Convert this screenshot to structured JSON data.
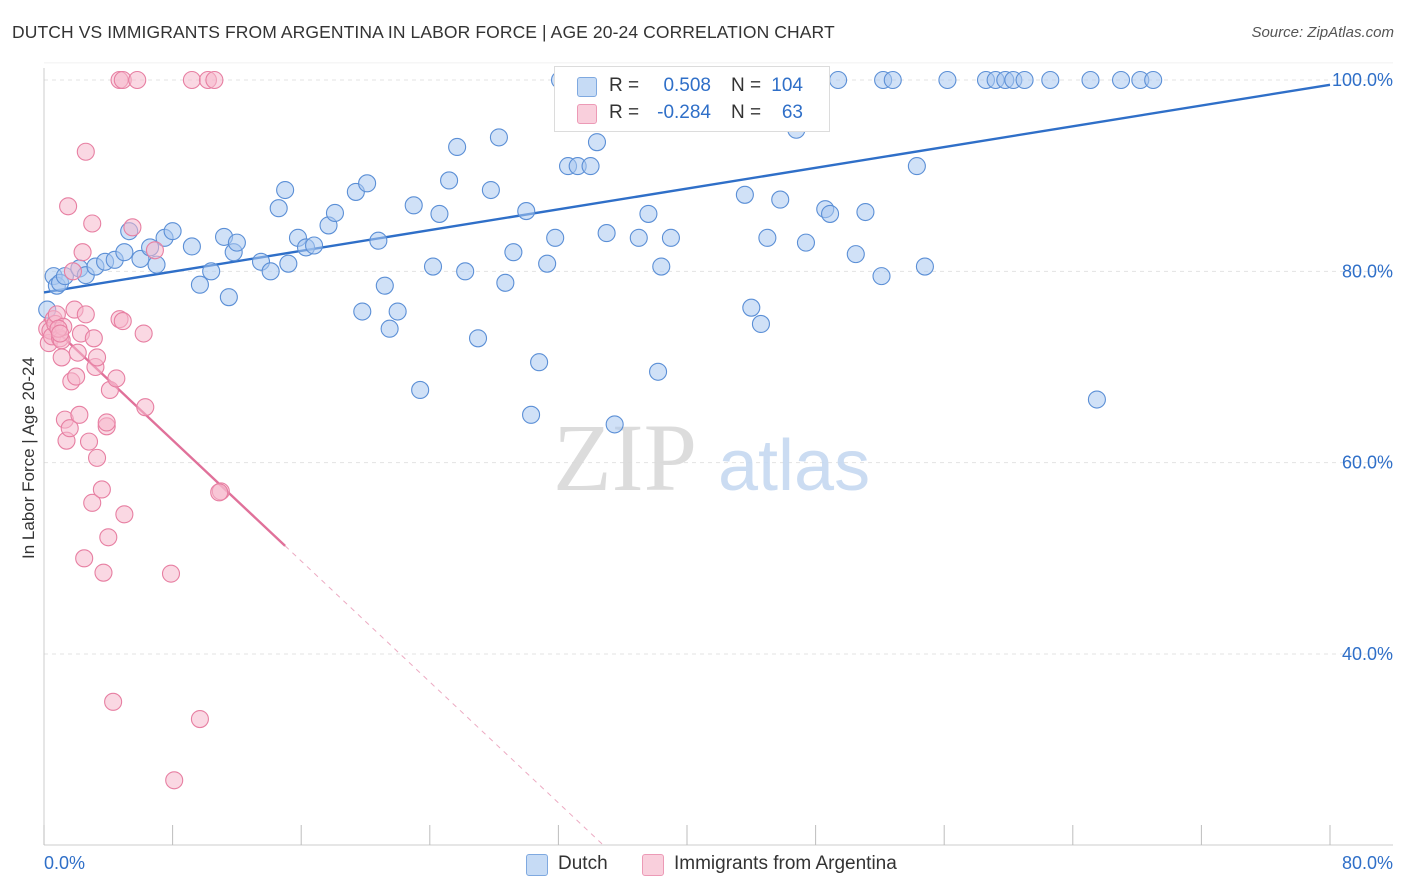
{
  "title": "DUTCH VS IMMIGRANTS FROM ARGENTINA IN LABOR FORCE | AGE 20-24 CORRELATION CHART",
  "source": "Source: ZipAtlas.com",
  "watermark": {
    "zip": "ZIP",
    "atlas": "atlas"
  },
  "colors": {
    "dutch_fill": "#aac8f0",
    "dutch_stroke": "#5b8fd6",
    "dutch_line": "#2f6fc8",
    "arg_fill": "#f6b8cc",
    "arg_stroke": "#e77fa2",
    "arg_line": "#e0719a",
    "axis_label": "#2f6fc8",
    "grid": "#e3e3e3"
  },
  "legend_top": [
    {
      "r_label": "R =",
      "r_value": "0.508",
      "n_label": "N =",
      "n_value": "104"
    },
    {
      "r_label": "R =",
      "r_value": "-0.284",
      "n_label": "N =",
      "n_value": "63"
    }
  ],
  "chart_data": {
    "type": "scatter",
    "title": "DUTCH VS IMMIGRANTS FROM ARGENTINA IN LABOR FORCE | AGE 20-24 CORRELATION CHART",
    "xlabel": "",
    "ylabel": "In Labor Force | Age 20-24",
    "xlim": [
      0,
      80
    ],
    "ylim": [
      20,
      102
    ],
    "x_tick_labels": [
      "0.0%",
      "80.0%"
    ],
    "y_ticks": [
      40,
      60,
      80,
      100
    ],
    "y_tick_labels": [
      "40.0%",
      "60.0%",
      "80.0%",
      "100.0%"
    ],
    "grid": true,
    "legend_position": "top-center and bottom",
    "series": [
      {
        "name": "Dutch",
        "r": 0.508,
        "n": 104,
        "trend": {
          "x": [
            0,
            80
          ],
          "y": [
            77.8,
            99.5
          ],
          "dashed_x": []
        },
        "points": [
          [
            0.2,
            76
          ],
          [
            0.6,
            79.5
          ],
          [
            0.8,
            78.5
          ],
          [
            1.0,
            78.8
          ],
          [
            1.3,
            79.5
          ],
          [
            2.2,
            80.3
          ],
          [
            2.6,
            79.6
          ],
          [
            3.2,
            80.5
          ],
          [
            3.8,
            81
          ],
          [
            4.4,
            81.2
          ],
          [
            5,
            82
          ],
          [
            5.3,
            84.2
          ],
          [
            6,
            81.3
          ],
          [
            6.6,
            82.5
          ],
          [
            7,
            80.7
          ],
          [
            7.5,
            83.5
          ],
          [
            8,
            84.2
          ],
          [
            9.2,
            82.6
          ],
          [
            9.7,
            78.6
          ],
          [
            10.4,
            80
          ],
          [
            11.2,
            83.6
          ],
          [
            11.8,
            82
          ],
          [
            11.5,
            77.3
          ],
          [
            12,
            83
          ],
          [
            13.5,
            81
          ],
          [
            14.1,
            80
          ],
          [
            14.6,
            86.6
          ],
          [
            15,
            88.5
          ],
          [
            15.2,
            80.8
          ],
          [
            15.8,
            83.5
          ],
          [
            16.3,
            82.5
          ],
          [
            16.8,
            82.7
          ],
          [
            17.7,
            84.8
          ],
          [
            18.1,
            86.1
          ],
          [
            19.4,
            88.3
          ],
          [
            19.8,
            75.8
          ],
          [
            20.1,
            89.2
          ],
          [
            20.8,
            83.2
          ],
          [
            21.5,
            74
          ],
          [
            21.2,
            78.5
          ],
          [
            22,
            75.8
          ],
          [
            23,
            86.9
          ],
          [
            23.4,
            67.6
          ],
          [
            24.2,
            80.5
          ],
          [
            24.6,
            86
          ],
          [
            25.2,
            89.5
          ],
          [
            25.7,
            93
          ],
          [
            26.2,
            80
          ],
          [
            27,
            73
          ],
          [
            27.8,
            88.5
          ],
          [
            28.3,
            94
          ],
          [
            28.7,
            78.8
          ],
          [
            29.2,
            82
          ],
          [
            30,
            86.3
          ],
          [
            30.3,
            65
          ],
          [
            30.8,
            70.5
          ],
          [
            31.3,
            80.8
          ],
          [
            31.8,
            83.5
          ],
          [
            32.1,
            100
          ],
          [
            32.6,
            91
          ],
          [
            33.2,
            91
          ],
          [
            34,
            91
          ],
          [
            34.4,
            93.5
          ],
          [
            35,
            84
          ],
          [
            35.5,
            64
          ],
          [
            37,
            83.5
          ],
          [
            37.6,
            86
          ],
          [
            38.2,
            69.5
          ],
          [
            38.4,
            80.5
          ],
          [
            39,
            83.5
          ],
          [
            40.2,
            100
          ],
          [
            41.5,
            100
          ],
          [
            42.3,
            100
          ],
          [
            43.6,
            88
          ],
          [
            44,
            76.2
          ],
          [
            44.6,
            74.5
          ],
          [
            45,
            83.5
          ],
          [
            45.8,
            87.5
          ],
          [
            46.8,
            94.8
          ],
          [
            47.4,
            83
          ],
          [
            48.2,
            100
          ],
          [
            48.6,
            86.5
          ],
          [
            48.9,
            86
          ],
          [
            49.4,
            100
          ],
          [
            50.5,
            81.8
          ],
          [
            51.1,
            86.2
          ],
          [
            52.2,
            100
          ],
          [
            52.8,
            100
          ],
          [
            54.3,
            91
          ],
          [
            54.8,
            80.5
          ],
          [
            52.1,
            79.5
          ],
          [
            56.2,
            100
          ],
          [
            58.6,
            100
          ],
          [
            59.2,
            100
          ],
          [
            59.8,
            100
          ],
          [
            60.3,
            100
          ],
          [
            61,
            100
          ],
          [
            62.6,
            100
          ],
          [
            65.1,
            100
          ],
          [
            65.5,
            66.6
          ],
          [
            67,
            100
          ],
          [
            68.2,
            100
          ],
          [
            69,
            100
          ]
        ]
      },
      {
        "name": "Immigrants from Argentina",
        "r": -0.284,
        "n": 63,
        "trend": {
          "x": [
            0,
            15
          ],
          "y": [
            75,
            51.3
          ],
          "dashed_x": [
            15,
            34.8
          ]
        },
        "points": [
          [
            0.2,
            74
          ],
          [
            0.3,
            72.5
          ],
          [
            0.4,
            73.8
          ],
          [
            0.5,
            73.2
          ],
          [
            0.6,
            75
          ],
          [
            0.7,
            74.5
          ],
          [
            0.8,
            75.5
          ],
          [
            1.0,
            73
          ],
          [
            1.1,
            72.8
          ],
          [
            1.2,
            74.2
          ],
          [
            0.9,
            74
          ],
          [
            1.0,
            73.5
          ],
          [
            1.1,
            71
          ],
          [
            1.3,
            64.5
          ],
          [
            1.4,
            62.3
          ],
          [
            1.5,
            86.8
          ],
          [
            1.6,
            63.6
          ],
          [
            1.7,
            68.5
          ],
          [
            1.8,
            80
          ],
          [
            1.9,
            76
          ],
          [
            2.0,
            69
          ],
          [
            2.1,
            71.5
          ],
          [
            2.2,
            65
          ],
          [
            2.3,
            73.5
          ],
          [
            2.4,
            82
          ],
          [
            2.5,
            50
          ],
          [
            2.6,
            75.5
          ],
          [
            2.6,
            92.5
          ],
          [
            2.8,
            62.2
          ],
          [
            3.0,
            55.8
          ],
          [
            3.0,
            85
          ],
          [
            3.1,
            73
          ],
          [
            3.2,
            70
          ],
          [
            3.3,
            71
          ],
          [
            3.3,
            60.5
          ],
          [
            3.6,
            57.2
          ],
          [
            3.7,
            48.5
          ],
          [
            3.9,
            63.8
          ],
          [
            3.9,
            64.2
          ],
          [
            4.0,
            52.2
          ],
          [
            4.1,
            67.6
          ],
          [
            4.3,
            35
          ],
          [
            4.5,
            68.8
          ],
          [
            4.7,
            75
          ],
          [
            4.7,
            100
          ],
          [
            4.9,
            74.8
          ],
          [
            4.9,
            100
          ],
          [
            5.0,
            54.6
          ],
          [
            5.5,
            84.6
          ],
          [
            5.8,
            100
          ],
          [
            6.2,
            73.5
          ],
          [
            6.3,
            65.8
          ],
          [
            6.9,
            82.2
          ],
          [
            7.9,
            48.4
          ],
          [
            8.1,
            26.8
          ],
          [
            9.2,
            100
          ],
          [
            9.7,
            33.2
          ],
          [
            10.2,
            100
          ],
          [
            10.6,
            100
          ],
          [
            11,
            57
          ],
          [
            10.9,
            56.9
          ]
        ]
      }
    ]
  },
  "bottom_legend": [
    "Dutch",
    "Immigrants from Argentina"
  ]
}
